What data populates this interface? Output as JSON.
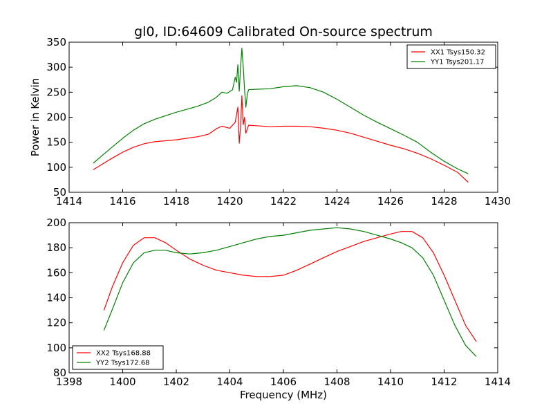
{
  "chart_data": [
    {
      "type": "line",
      "title": "gl0, ID:64609 Calibrated On-source spectrum",
      "xlabel": "",
      "ylabel": "Power in Kelvin",
      "xlim": [
        1414,
        1430
      ],
      "ylim": [
        50,
        350
      ],
      "xticks": [
        1414,
        1416,
        1418,
        1420,
        1422,
        1424,
        1426,
        1428,
        1430
      ],
      "yticks": [
        50,
        100,
        150,
        200,
        250,
        300,
        350
      ],
      "grid": false,
      "legend_position": "top-right",
      "series": [
        {
          "name": "XX1 Tsys150.32",
          "color": "#ff0000",
          "x": [
            1414.9,
            1415.2,
            1415.6,
            1416.0,
            1416.4,
            1416.8,
            1417.2,
            1417.6,
            1418.0,
            1418.4,
            1418.8,
            1419.2,
            1419.5,
            1419.7,
            1420.0,
            1420.2,
            1420.3,
            1420.35,
            1420.4,
            1420.45,
            1420.5,
            1420.55,
            1420.6,
            1420.7,
            1421.0,
            1421.5,
            1422.0,
            1422.5,
            1423.0,
            1423.5,
            1424.0,
            1424.5,
            1425.0,
            1425.5,
            1426.0,
            1426.5,
            1427.0,
            1427.5,
            1428.0,
            1428.5,
            1428.9
          ],
          "y": [
            95,
            105,
            118,
            130,
            140,
            147,
            151,
            153,
            155,
            158,
            161,
            166,
            177,
            182,
            178,
            190,
            220,
            148,
            180,
            243,
            185,
            200,
            168,
            184,
            183,
            181,
            182,
            182,
            181,
            178,
            174,
            168,
            160,
            152,
            144,
            137,
            128,
            117,
            104,
            90,
            70
          ]
        },
        {
          "name": "YY1 Tsys201.17",
          "color": "#008000",
          "x": [
            1414.9,
            1415.2,
            1415.6,
            1416.0,
            1416.4,
            1416.8,
            1417.2,
            1417.6,
            1418.0,
            1418.4,
            1418.8,
            1419.2,
            1419.5,
            1419.7,
            1419.9,
            1420.1,
            1420.2,
            1420.25,
            1420.3,
            1420.35,
            1420.4,
            1420.45,
            1420.5,
            1420.55,
            1420.6,
            1420.65,
            1420.7,
            1421.0,
            1421.5,
            1422.0,
            1422.5,
            1423.0,
            1423.5,
            1424.0,
            1424.5,
            1425.0,
            1425.5,
            1426.0,
            1426.5,
            1427.0,
            1427.5,
            1428.0,
            1428.5,
            1428.9
          ],
          "y": [
            108,
            122,
            140,
            158,
            174,
            187,
            196,
            203,
            210,
            216,
            222,
            230,
            240,
            250,
            248,
            255,
            280,
            270,
            305,
            252,
            300,
            338,
            300,
            255,
            220,
            245,
            255,
            256,
            257,
            261,
            263,
            259,
            250,
            236,
            220,
            204,
            190,
            177,
            164,
            150,
            130,
            112,
            97,
            87
          ]
        }
      ]
    },
    {
      "type": "line",
      "title": "",
      "xlabel": "Frequency (MHz)",
      "ylabel": "",
      "xlim": [
        1398,
        1414
      ],
      "ylim": [
        80,
        200
      ],
      "xticks": [
        1398,
        1400,
        1402,
        1404,
        1406,
        1408,
        1410,
        1412,
        1414
      ],
      "yticks": [
        80,
        100,
        120,
        140,
        160,
        180,
        200
      ],
      "grid": false,
      "legend_position": "bottom-left",
      "series": [
        {
          "name": "XX2 Tsys168.88",
          "color": "#ff0000",
          "x": [
            1399.3,
            1399.6,
            1400.0,
            1400.4,
            1400.8,
            1401.2,
            1401.6,
            1402.0,
            1402.5,
            1403.0,
            1403.5,
            1404.0,
            1404.5,
            1405.0,
            1405.5,
            1406.0,
            1406.5,
            1407.0,
            1407.5,
            1408.0,
            1408.5,
            1409.0,
            1409.5,
            1410.0,
            1410.4,
            1410.8,
            1411.2,
            1411.6,
            1412.0,
            1412.4,
            1412.8,
            1413.2
          ],
          "y": [
            130,
            148,
            168,
            182,
            188,
            188,
            184,
            178,
            171,
            166,
            162,
            160,
            158,
            157,
            157,
            158,
            162,
            167,
            172,
            177,
            181,
            185,
            188,
            191,
            193,
            193,
            188,
            176,
            158,
            138,
            118,
            105
          ]
        },
        {
          "name": "YY2 Tsys172.68",
          "color": "#008000",
          "x": [
            1399.3,
            1399.6,
            1400.0,
            1400.4,
            1400.8,
            1401.2,
            1401.6,
            1402.0,
            1402.5,
            1403.0,
            1403.5,
            1404.0,
            1404.5,
            1405.0,
            1405.5,
            1406.0,
            1406.5,
            1407.0,
            1407.5,
            1408.0,
            1408.5,
            1409.0,
            1409.5,
            1410.0,
            1410.4,
            1410.8,
            1411.2,
            1411.6,
            1412.0,
            1412.4,
            1412.8,
            1413.2
          ],
          "y": [
            114,
            130,
            152,
            168,
            176,
            178,
            178,
            176,
            175,
            176,
            178,
            181,
            184,
            187,
            189,
            190,
            192,
            194,
            195,
            196,
            195,
            193,
            190,
            187,
            184,
            180,
            172,
            158,
            138,
            118,
            102,
            93
          ]
        }
      ]
    }
  ]
}
